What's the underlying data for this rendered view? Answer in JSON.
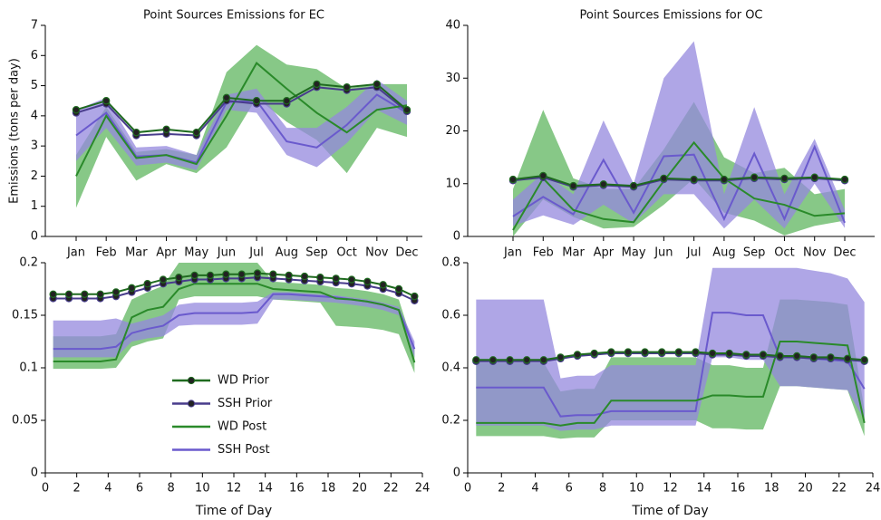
{
  "chart_data": [
    {
      "type": "line",
      "title": "Point Sources Emissions for EC",
      "ylabel": "Emissions (tons per day)",
      "categories": [
        "Jan",
        "Feb",
        "Mar",
        "Apr",
        "May",
        "Jun",
        "Jul",
        "Aug",
        "Sep",
        "Oct",
        "Nov",
        "Dec"
      ],
      "ylim": [
        0,
        7
      ],
      "yticks": [
        0,
        1,
        2,
        3,
        4,
        5,
        6,
        7
      ],
      "series": [
        {
          "color": "#1f6b1f",
          "marker": "circle",
          "values": [
            4.2,
            4.5,
            3.45,
            3.55,
            3.45,
            4.6,
            4.5,
            4.5,
            5.05,
            4.95,
            5.05,
            4.2
          ]
        },
        {
          "color": "#483c8c",
          "marker": "circle",
          "values": [
            4.1,
            4.4,
            3.35,
            3.4,
            3.35,
            4.5,
            4.4,
            4.4,
            4.95,
            4.85,
            4.95,
            4.15
          ]
        },
        {
          "color": "#2a8a2a",
          "band_color": "#5fb55f",
          "values": [
            2.0,
            4.0,
            2.6,
            2.7,
            2.4,
            4.0,
            5.75,
            4.9,
            4.1,
            3.45,
            4.2,
            4.35
          ],
          "lower": [
            0.95,
            3.3,
            1.85,
            2.4,
            2.1,
            2.95,
            4.6,
            3.8,
            3.2,
            2.1,
            3.6,
            3.3
          ],
          "upper": [
            2.7,
            4.3,
            2.8,
            2.9,
            2.7,
            5.45,
            6.35,
            5.7,
            5.55,
            4.9,
            5.05,
            5.05
          ]
        },
        {
          "color": "#6a5acd",
          "band_color": "#9488dd",
          "values": [
            3.35,
            4.1,
            2.65,
            2.7,
            2.45,
            4.45,
            4.5,
            3.15,
            2.95,
            3.7,
            4.7,
            4.1
          ],
          "lower": [
            2.5,
            3.6,
            2.35,
            2.45,
            2.2,
            4.2,
            4.1,
            2.7,
            2.3,
            3.1,
            4.2,
            3.7
          ],
          "upper": [
            4.2,
            4.6,
            2.95,
            3.0,
            2.7,
            4.7,
            4.9,
            3.6,
            3.6,
            4.3,
            5.2,
            4.5
          ]
        }
      ]
    },
    {
      "type": "line",
      "title": "Point Sources Emissions for OC",
      "categories": [
        "Jan",
        "Feb",
        "Mar",
        "Apr",
        "May",
        "Jun",
        "Jul",
        "Aug",
        "Sep",
        "Oct",
        "Nov",
        "Dec"
      ],
      "ylim": [
        0,
        40
      ],
      "yticks": [
        0,
        10,
        20,
        30,
        40
      ],
      "series": [
        {
          "color": "#1f6b1f",
          "marker": "circle",
          "values": [
            10.8,
            11.5,
            9.6,
            9.9,
            9.6,
            11,
            10.8,
            10.8,
            11.2,
            11,
            11.2,
            10.8
          ]
        },
        {
          "color": "#483c8c",
          "marker": "circle",
          "values": [
            10.6,
            11.2,
            9.4,
            9.7,
            9.4,
            10.8,
            10.6,
            10.6,
            11,
            10.8,
            11,
            10.6
          ]
        },
        {
          "color": "#2a8a2a",
          "band_color": "#5fb55f",
          "values": [
            1.2,
            11,
            5,
            3.3,
            2.7,
            10.5,
            17.8,
            11,
            7.2,
            6,
            3.9,
            4.4
          ],
          "lower": [
            0,
            7,
            3.7,
            1.5,
            1.8,
            6,
            11,
            4.5,
            3,
            0.2,
            2,
            3
          ],
          "upper": [
            9,
            24,
            11,
            9,
            9,
            16.5,
            25.5,
            15,
            12,
            13,
            8,
            9
          ]
        },
        {
          "color": "#6a5acd",
          "band_color": "#9488dd",
          "values": [
            3.8,
            7.5,
            4.2,
            14.5,
            4.5,
            15.2,
            15.5,
            3.3,
            15.7,
            3.3,
            17,
            2.6
          ],
          "lower": [
            2,
            4,
            2.2,
            6,
            2.5,
            8,
            8,
            1.5,
            7,
            1.5,
            10,
            1.6
          ],
          "upper": [
            7,
            12,
            8,
            22,
            10,
            30,
            37,
            8,
            24.5,
            8,
            18.5,
            5
          ]
        }
      ]
    },
    {
      "type": "line",
      "xlabel": "Time of Day",
      "legend": "lower-center",
      "x": [
        0.5,
        1.5,
        2.5,
        3.5,
        4.5,
        5.5,
        6.5,
        7.5,
        8.5,
        9.5,
        10.5,
        11.5,
        12.5,
        13.5,
        14.5,
        15.5,
        16.5,
        17.5,
        18.5,
        19.5,
        20.5,
        21.5,
        22.5,
        23.5
      ],
      "xlim": [
        0,
        24
      ],
      "xticks": [
        0,
        2,
        4,
        6,
        8,
        10,
        12,
        14,
        16,
        18,
        20,
        22,
        24
      ],
      "ylim": [
        0,
        0.2
      ],
      "yticks": [
        0,
        0.05,
        0.1,
        0.15,
        0.2
      ],
      "series": [
        {
          "name": "WD Prior",
          "color": "#1f6b1f",
          "marker": "circle",
          "values": [
            0.17,
            0.17,
            0.17,
            0.17,
            0.172,
            0.176,
            0.18,
            0.184,
            0.186,
            0.188,
            0.188,
            0.189,
            0.189,
            0.19,
            0.189,
            0.188,
            0.187,
            0.186,
            0.185,
            0.184,
            0.182,
            0.179,
            0.175,
            0.168
          ]
        },
        {
          "name": "SSH Prior",
          "color": "#483c8c",
          "marker": "circle",
          "values": [
            0.166,
            0.166,
            0.166,
            0.166,
            0.168,
            0.172,
            0.176,
            0.18,
            0.182,
            0.184,
            0.184,
            0.185,
            0.185,
            0.186,
            0.185,
            0.184,
            0.183,
            0.182,
            0.181,
            0.18,
            0.178,
            0.175,
            0.171,
            0.164
          ]
        },
        {
          "name": "WD Post",
          "color": "#2a8a2a",
          "band_color": "#5fb55f",
          "values": [
            0.106,
            0.106,
            0.106,
            0.106,
            0.108,
            0.148,
            0.155,
            0.158,
            0.175,
            0.18,
            0.18,
            0.18,
            0.18,
            0.18,
            0.175,
            0.174,
            0.173,
            0.172,
            0.166,
            0.165,
            0.163,
            0.16,
            0.155,
            0.105
          ],
          "lower": [
            0.099,
            0.099,
            0.099,
            0.099,
            0.1,
            0.12,
            0.125,
            0.128,
            0.165,
            0.168,
            0.168,
            0.168,
            0.168,
            0.168,
            0.165,
            0.164,
            0.163,
            0.162,
            0.14,
            0.139,
            0.138,
            0.136,
            0.132,
            0.095
          ],
          "upper": [
            0.13,
            0.13,
            0.13,
            0.13,
            0.132,
            0.165,
            0.172,
            0.178,
            0.2,
            0.2,
            0.2,
            0.2,
            0.2,
            0.2,
            0.182,
            0.181,
            0.18,
            0.179,
            0.176,
            0.175,
            0.173,
            0.17,
            0.165,
            0.118
          ]
        },
        {
          "name": "SSH Post",
          "color": "#6a5acd",
          "band_color": "#9488dd",
          "values": [
            0.118,
            0.118,
            0.118,
            0.118,
            0.12,
            0.133,
            0.137,
            0.14,
            0.15,
            0.152,
            0.152,
            0.152,
            0.152,
            0.153,
            0.17,
            0.17,
            0.169,
            0.168,
            0.167,
            0.165,
            0.163,
            0.16,
            0.155,
            0.118
          ],
          "lower": [
            0.11,
            0.11,
            0.11,
            0.11,
            0.11,
            0.125,
            0.128,
            0.13,
            0.14,
            0.141,
            0.141,
            0.141,
            0.141,
            0.142,
            0.165,
            0.165,
            0.164,
            0.163,
            0.162,
            0.16,
            0.158,
            0.155,
            0.15,
            0.11
          ],
          "upper": [
            0.145,
            0.145,
            0.145,
            0.145,
            0.147,
            0.142,
            0.146,
            0.15,
            0.16,
            0.162,
            0.162,
            0.162,
            0.162,
            0.163,
            0.172,
            0.172,
            0.171,
            0.17,
            0.169,
            0.167,
            0.165,
            0.162,
            0.158,
            0.125
          ]
        }
      ]
    },
    {
      "type": "line",
      "xlabel": "Time of Day",
      "x": [
        0.5,
        1.5,
        2.5,
        3.5,
        4.5,
        5.5,
        6.5,
        7.5,
        8.5,
        9.5,
        10.5,
        11.5,
        12.5,
        13.5,
        14.5,
        15.5,
        16.5,
        17.5,
        18.5,
        19.5,
        20.5,
        21.5,
        22.5,
        23.5
      ],
      "xlim": [
        0,
        24
      ],
      "xticks": [
        0,
        2,
        4,
        6,
        8,
        10,
        12,
        14,
        16,
        18,
        20,
        22,
        24
      ],
      "ylim": [
        0,
        0.8
      ],
      "yticks": [
        0,
        0.2,
        0.4,
        0.6,
        0.8
      ],
      "series": [
        {
          "color": "#1f6b1f",
          "marker": "circle",
          "values": [
            0.43,
            0.43,
            0.43,
            0.43,
            0.43,
            0.44,
            0.45,
            0.455,
            0.46,
            0.46,
            0.46,
            0.46,
            0.46,
            0.46,
            0.455,
            0.455,
            0.45,
            0.45,
            0.445,
            0.445,
            0.44,
            0.44,
            0.435,
            0.43
          ]
        },
        {
          "color": "#483c8c",
          "marker": "circle",
          "values": [
            0.425,
            0.425,
            0.425,
            0.425,
            0.425,
            0.435,
            0.445,
            0.45,
            0.455,
            0.455,
            0.455,
            0.455,
            0.455,
            0.455,
            0.45,
            0.45,
            0.445,
            0.445,
            0.44,
            0.44,
            0.435,
            0.435,
            0.43,
            0.425
          ]
        },
        {
          "color": "#2a8a2a",
          "band_color": "#5fb55f",
          "values": [
            0.19,
            0.19,
            0.19,
            0.19,
            0.19,
            0.18,
            0.19,
            0.19,
            0.275,
            0.275,
            0.275,
            0.275,
            0.275,
            0.275,
            0.295,
            0.295,
            0.29,
            0.29,
            0.5,
            0.5,
            0.495,
            0.49,
            0.485,
            0.19
          ],
          "lower": [
            0.14,
            0.14,
            0.14,
            0.14,
            0.14,
            0.13,
            0.135,
            0.135,
            0.2,
            0.2,
            0.2,
            0.2,
            0.2,
            0.2,
            0.17,
            0.17,
            0.165,
            0.165,
            0.33,
            0.33,
            0.325,
            0.32,
            0.315,
            0.14
          ],
          "upper": [
            0.42,
            0.42,
            0.42,
            0.42,
            0.42,
            0.31,
            0.32,
            0.32,
            0.44,
            0.44,
            0.44,
            0.44,
            0.44,
            0.44,
            0.41,
            0.41,
            0.4,
            0.4,
            0.66,
            0.66,
            0.655,
            0.65,
            0.64,
            0.24
          ]
        },
        {
          "color": "#6a5acd",
          "band_color": "#9488dd",
          "values": [
            0.325,
            0.325,
            0.325,
            0.325,
            0.325,
            0.215,
            0.22,
            0.22,
            0.235,
            0.235,
            0.235,
            0.235,
            0.235,
            0.235,
            0.61,
            0.61,
            0.6,
            0.6,
            0.44,
            0.44,
            0.435,
            0.43,
            0.425,
            0.32
          ],
          "lower": [
            0.18,
            0.18,
            0.18,
            0.18,
            0.18,
            0.16,
            0.165,
            0.165,
            0.18,
            0.18,
            0.18,
            0.18,
            0.18,
            0.18,
            0.44,
            0.44,
            0.43,
            0.43,
            0.33,
            0.33,
            0.325,
            0.32,
            0.315,
            0.2
          ],
          "upper": [
            0.66,
            0.66,
            0.66,
            0.66,
            0.66,
            0.36,
            0.37,
            0.37,
            0.41,
            0.41,
            0.41,
            0.41,
            0.41,
            0.41,
            0.78,
            0.78,
            0.78,
            0.78,
            0.78,
            0.78,
            0.77,
            0.76,
            0.74,
            0.65
          ]
        }
      ]
    }
  ]
}
